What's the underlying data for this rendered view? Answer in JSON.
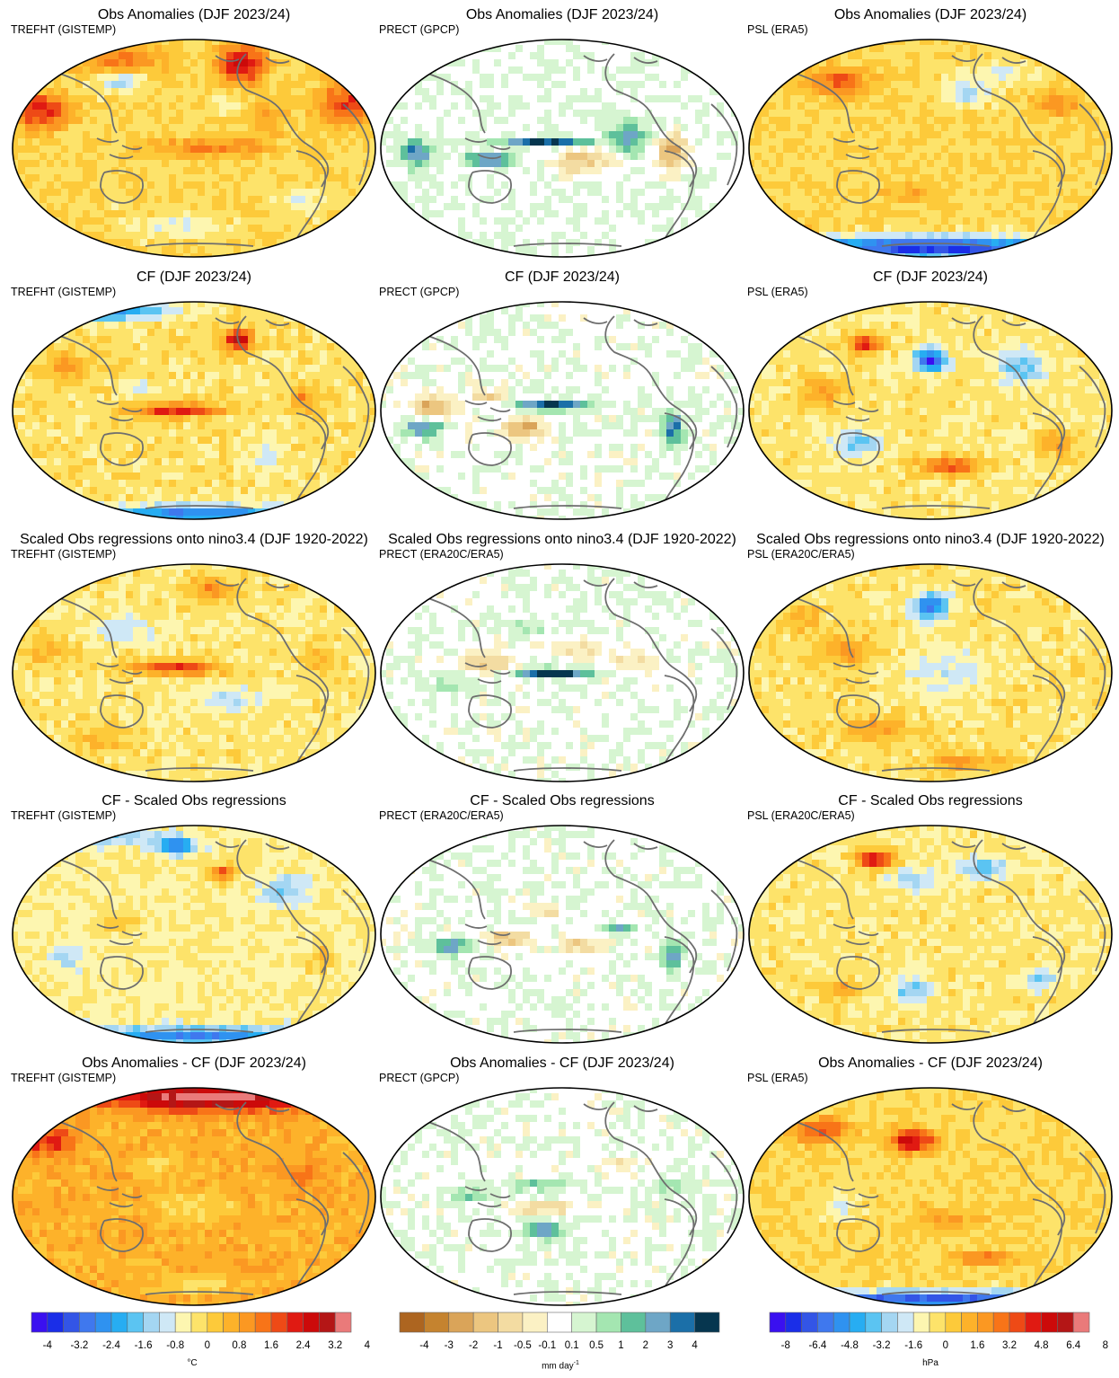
{
  "rows": [
    {
      "title": "Obs Anomalies (DJF 2023/24)",
      "datasets": [
        "TREFHT (GISTEMP)",
        "PRECT (GPCP)",
        "PSL (ERA5)"
      ]
    },
    {
      "title": "CF (DJF 2023/24)",
      "datasets": [
        "TREFHT (GISTEMP)",
        "PRECT (GPCP)",
        "PSL (ERA5)"
      ]
    },
    {
      "title": "Scaled Obs regressions onto nino3.4 (DJF 1920-2022)",
      "datasets": [
        "TREFHT (GISTEMP)",
        "PRECT (ERA20C/ERA5)",
        "PSL (ERA20C/ERA5)"
      ]
    },
    {
      "title": "CF - Scaled Obs regressions",
      "datasets": [
        "TREFHT (GISTEMP)",
        "PRECT (ERA20C/ERA5)",
        "PSL (ERA20C/ERA5)"
      ]
    },
    {
      "title": "Obs Anomalies - CF (DJF 2023/24)",
      "datasets": [
        "TREFHT (GISTEMP)",
        "PRECT (GPCP)",
        "PSL (ERA5)"
      ]
    }
  ],
  "colorbars": [
    {
      "name": "temperature",
      "unit": "°C",
      "unit_sup": "",
      "colors": [
        "#3a10f0",
        "#1a2ee8",
        "#3355e6",
        "#3f78ee",
        "#2f92f0",
        "#27adf2",
        "#5bc4f2",
        "#a4d6f2",
        "#cfe8f6",
        "#fdf6b0",
        "#fde36a",
        "#fdca3a",
        "#fdb22a",
        "#fb9822",
        "#f87418",
        "#ee4a16",
        "#e01a12",
        "#cc0a0a",
        "#b41616",
        "#ea7a7a"
      ],
      "ticks": [
        "-4",
        "-3.2",
        "-2.4",
        "-1.6",
        "-0.8",
        "0",
        "0.8",
        "1.6",
        "2.4",
        "3.2",
        "4"
      ]
    },
    {
      "name": "precipitation",
      "unit": "mm day",
      "unit_sup": "-1",
      "colors": [
        "#ad6520",
        "#c5832f",
        "#daa459",
        "#ecc680",
        "#f3dca2",
        "#fbf1c4",
        "#ffffff",
        "#d6f5d1",
        "#a4e6b1",
        "#5ec09b",
        "#6ea6c6",
        "#1b6fa8",
        "#06364f"
      ],
      "ticks": [
        "-4",
        "-3",
        "-2",
        "-1",
        "-0.5",
        "-0.1",
        "0.1",
        "0.5",
        "1",
        "2",
        "3",
        "4"
      ]
    },
    {
      "name": "pressure",
      "unit": "hPa",
      "unit_sup": "",
      "colors": [
        "#3a10f0",
        "#1a2ee8",
        "#3355e6",
        "#3f78ee",
        "#2f92f0",
        "#27adf2",
        "#5bc4f2",
        "#a4d6f2",
        "#cfe8f6",
        "#fdf6b0",
        "#fde36a",
        "#fdca3a",
        "#fdb22a",
        "#fb9822",
        "#f87418",
        "#ee4a16",
        "#e01a12",
        "#cc0a0a",
        "#b41616",
        "#ea7a7a"
      ],
      "ticks": [
        "-8",
        "-6.4",
        "-4.8",
        "-3.2",
        "-1.6",
        "0",
        "1.6",
        "3.2",
        "4.8",
        "6.4",
        "8"
      ]
    }
  ]
}
